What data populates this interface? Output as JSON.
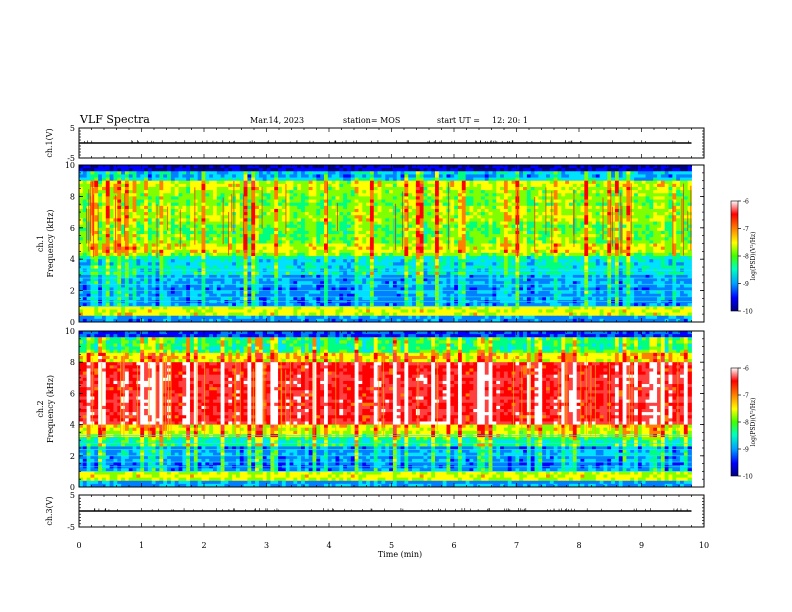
{
  "header": {
    "title": "VLF Spectra",
    "date": "Mar.14, 2023",
    "station": "station= MOS",
    "start_label": "start UT =",
    "start_time": "12: 20: 1"
  },
  "chart_data": [
    {
      "type": "line",
      "ylabel": "ch.1(V)",
      "ylim": [
        -5,
        5
      ],
      "yticks": [
        {
          "value": 5,
          "label": "5"
        },
        {
          "value": -5,
          "label": "-5"
        }
      ],
      "xlim": [
        0,
        10
      ],
      "series": [
        {
          "x": [
            0,
            9.8
          ],
          "y": [
            0,
            0
          ]
        }
      ]
    },
    {
      "type": "heatmap",
      "ylabel": "Frequency (kHz)",
      "ylabel2": "ch.1",
      "ylim": [
        0,
        10
      ],
      "yticks": [
        "0",
        "2",
        "4",
        "6",
        "8",
        "10"
      ],
      "xlim": [
        0,
        10
      ],
      "data_extent_min": 9.8,
      "colorbar": {
        "label": "log(PSD)(V²/Hz)",
        "range": [
          -10,
          -6
        ],
        "ticks": [
          "-6",
          "-7",
          "-8",
          "-9",
          "-10"
        ]
      },
      "dominant_band_khz": [
        0.5,
        9.5
      ],
      "dominant_color": "green-yellow"
    },
    {
      "type": "heatmap",
      "ylabel": "Frequency (kHz)",
      "ylabel2": "ch.2",
      "ylim": [
        0,
        10
      ],
      "yticks": [
        "0",
        "2",
        "4",
        "6",
        "8",
        "10"
      ],
      "xlim": [
        0,
        10
      ],
      "data_extent_min": 9.8,
      "colorbar": {
        "label": "log(PSD)(V²/Hz)",
        "range": [
          -10,
          -6
        ],
        "ticks": [
          "-6",
          "-7",
          "-8",
          "-9",
          "-10"
        ]
      },
      "dominant_band_khz": [
        3.5,
        8
      ],
      "dominant_color": "red"
    },
    {
      "type": "line",
      "ylabel": "ch.3(V)",
      "ylim": [
        -5,
        5
      ],
      "yticks": [
        {
          "value": 5,
          "label": "5"
        },
        {
          "value": -5,
          "label": "-5"
        }
      ],
      "xlim": [
        0,
        10
      ],
      "xlabel": "Time (min)",
      "xticks": [
        "0",
        "1",
        "2",
        "3",
        "4",
        "5",
        "6",
        "7",
        "8",
        "9",
        "10"
      ],
      "series": [
        {
          "x": [
            0,
            9.8
          ],
          "y": [
            0,
            0
          ]
        }
      ]
    }
  ],
  "colors": {
    "colormap": [
      "#000080",
      "#0000ff",
      "#0080ff",
      "#00e0ff",
      "#00ff80",
      "#80ff00",
      "#ffff00",
      "#ff8000",
      "#ff0000",
      "#ff4040",
      "#ffffff"
    ]
  }
}
